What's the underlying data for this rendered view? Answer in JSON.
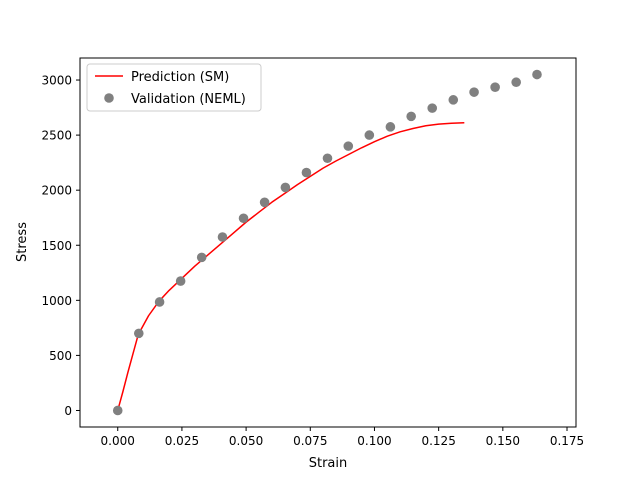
{
  "chart_data": {
    "type": "line",
    "title": "",
    "xlabel": "Strain",
    "ylabel": "Stress",
    "xlim": [
      -0.0147,
      0.1785
    ],
    "ylim": [
      -150,
      3200
    ],
    "xticks": [
      0.0,
      0.025,
      0.05,
      0.075,
      0.1,
      0.125,
      0.15,
      0.175
    ],
    "xtick_labels": [
      "0.000",
      "0.025",
      "0.050",
      "0.075",
      "0.100",
      "0.125",
      "0.150",
      "0.175"
    ],
    "yticks": [
      0,
      500,
      1000,
      1500,
      2000,
      2500,
      3000
    ],
    "ytick_labels": [
      "0",
      "500",
      "1000",
      "1500",
      "2000",
      "2500",
      "3000"
    ],
    "grid": false,
    "legend_position": "top-left",
    "series": [
      {
        "name": "Prediction (SM)",
        "kind": "line",
        "color": "#ff0000",
        "x": [
          0.0,
          0.002,
          0.004,
          0.006,
          0.008,
          0.012,
          0.016,
          0.02,
          0.025,
          0.03,
          0.035,
          0.04,
          0.045,
          0.05,
          0.055,
          0.06,
          0.065,
          0.07,
          0.075,
          0.08,
          0.085,
          0.09,
          0.095,
          0.1,
          0.105,
          0.11,
          0.115,
          0.12,
          0.125,
          0.13,
          0.135
        ],
        "y": [
          0,
          170,
          350,
          520,
          690,
          860,
          990,
          1090,
          1200,
          1310,
          1410,
          1510,
          1610,
          1710,
          1800,
          1890,
          1970,
          2050,
          2125,
          2200,
          2265,
          2325,
          2385,
          2440,
          2490,
          2530,
          2560,
          2585,
          2600,
          2608,
          2612
        ]
      },
      {
        "name": "Validation (NEML)",
        "kind": "scatter",
        "color": "#808080",
        "x": [
          0.0,
          0.0082,
          0.0163,
          0.0245,
          0.0327,
          0.0408,
          0.049,
          0.0572,
          0.0653,
          0.0735,
          0.0817,
          0.0898,
          0.098,
          0.1062,
          0.1143,
          0.1225,
          0.1307,
          0.1388,
          0.147,
          0.1552,
          0.1633
        ],
        "y": [
          0,
          700,
          985,
          1175,
          1390,
          1575,
          1745,
          1890,
          2025,
          2160,
          2290,
          2400,
          2500,
          2575,
          2670,
          2745,
          2820,
          2890,
          2935,
          2980,
          3050
        ]
      }
    ]
  }
}
